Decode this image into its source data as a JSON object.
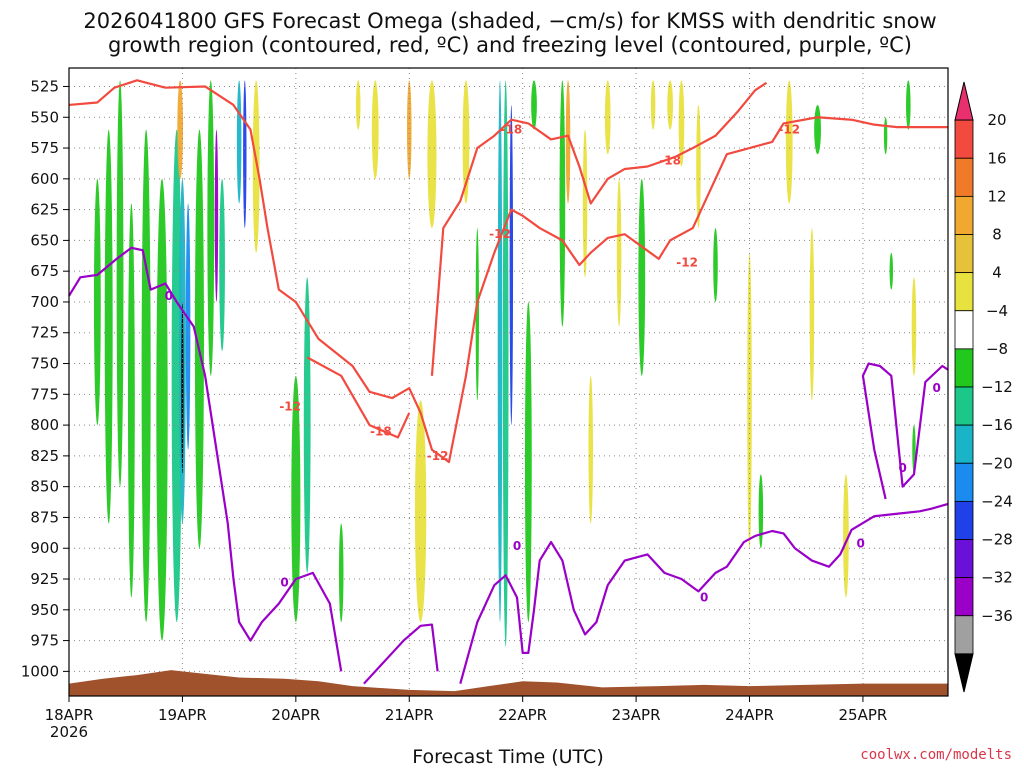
{
  "chart_data": {
    "type": "heatmap",
    "title_line1": "2026041800 GFS Forecast Omega (shaded, −cm/s) for KMSS with dendritic snow",
    "title_line2": "growth region (contoured, red, ºC) and freezing level (contoured, purple, ºC)",
    "xlabel": "Forecast Time (UTC)",
    "ylabel": "",
    "credit": "coolwx.com/modelts",
    "x_ticks": [
      "18APR",
      "19APR",
      "20APR",
      "21APR",
      "22APR",
      "23APR",
      "24APR",
      "25APR"
    ],
    "x_first_sub": "2026",
    "xlim_days": [
      0,
      7.75
    ],
    "y_ticks": [
      525,
      550,
      575,
      600,
      625,
      650,
      675,
      700,
      725,
      750,
      775,
      800,
      825,
      850,
      875,
      900,
      925,
      950,
      975,
      1000
    ],
    "ylim": [
      1020,
      510
    ],
    "colorbar": {
      "labels": [
        "20",
        "16",
        "12",
        "8",
        "4",
        "−4",
        "−8",
        "−12",
        "−16",
        "−20",
        "−24",
        "−28",
        "−32",
        "−36"
      ],
      "colors": [
        "#e8306e",
        "#f24a3f",
        "#f07a28",
        "#f0a830",
        "#e6c23a",
        "#e8e23f",
        "#ffffff",
        "#22c81e",
        "#1bc88a",
        "#1ab4c8",
        "#1a8cf0",
        "#2040e8",
        "#6a10d8",
        "#9a00c8",
        "#a0a0a0",
        "#000000"
      ]
    },
    "omega_blobs": [
      {
        "t": 0.25,
        "p0": 600,
        "p1": 800,
        "w": 0.06,
        "c": "#22c81e"
      },
      {
        "t": 0.35,
        "p0": 560,
        "p1": 880,
        "w": 0.07,
        "c": "#22c81e"
      },
      {
        "t": 0.45,
        "p0": 520,
        "p1": 850,
        "w": 0.06,
        "c": "#22c81e"
      },
      {
        "t": 0.55,
        "p0": 620,
        "p1": 940,
        "w": 0.06,
        "c": "#22c81e"
      },
      {
        "t": 0.68,
        "p0": 560,
        "p1": 960,
        "w": 0.08,
        "c": "#22c81e"
      },
      {
        "t": 0.82,
        "p0": 600,
        "p1": 975,
        "w": 0.1,
        "c": "#22c81e"
      },
      {
        "t": 0.95,
        "p0": 560,
        "p1": 960,
        "w": 0.09,
        "c": "#1bc88a"
      },
      {
        "t": 1.0,
        "p0": 600,
        "p1": 880,
        "w": 0.06,
        "c": "#1ab4c8"
      },
      {
        "t": 1.05,
        "p0": 620,
        "p1": 820,
        "w": 0.04,
        "c": "#1a8cf0"
      },
      {
        "t": 1.0,
        "p0": 700,
        "p1": 840,
        "w": 0.02,
        "c": "#000000"
      },
      {
        "t": 0.98,
        "p0": 520,
        "p1": 600,
        "w": 0.05,
        "c": "#f0a830"
      },
      {
        "t": 1.15,
        "p0": 560,
        "p1": 900,
        "w": 0.08,
        "c": "#22c81e"
      },
      {
        "t": 1.25,
        "p0": 520,
        "p1": 760,
        "w": 0.06,
        "c": "#22c81e"
      },
      {
        "t": 1.3,
        "p0": 560,
        "p1": 700,
        "w": 0.03,
        "c": "#9a00c8"
      },
      {
        "t": 1.35,
        "p0": 600,
        "p1": 740,
        "w": 0.05,
        "c": "#1bc88a"
      },
      {
        "t": 1.5,
        "p0": 520,
        "p1": 620,
        "w": 0.04,
        "c": "#1ab4c8"
      },
      {
        "t": 1.55,
        "p0": 520,
        "p1": 640,
        "w": 0.03,
        "c": "#2040e8"
      },
      {
        "t": 1.65,
        "p0": 520,
        "p1": 660,
        "w": 0.06,
        "c": "#e8e23f"
      },
      {
        "t": 2.0,
        "p0": 760,
        "p1": 960,
        "w": 0.08,
        "c": "#22c81e"
      },
      {
        "t": 2.1,
        "p0": 680,
        "p1": 920,
        "w": 0.06,
        "c": "#1bc88a"
      },
      {
        "t": 2.4,
        "p0": 880,
        "p1": 960,
        "w": 0.04,
        "c": "#22c81e"
      },
      {
        "t": 2.55,
        "p0": 520,
        "p1": 560,
        "w": 0.04,
        "c": "#e8e23f"
      },
      {
        "t": 2.7,
        "p0": 520,
        "p1": 600,
        "w": 0.06,
        "c": "#e8e23f"
      },
      {
        "t": 3.1,
        "p0": 780,
        "p1": 960,
        "w": 0.1,
        "c": "#e8e23f"
      },
      {
        "t": 3.0,
        "p0": 520,
        "p1": 600,
        "w": 0.04,
        "c": "#f0a830"
      },
      {
        "t": 3.2,
        "p0": 520,
        "p1": 640,
        "w": 0.08,
        "c": "#e8e23f"
      },
      {
        "t": 3.5,
        "p0": 520,
        "p1": 620,
        "w": 0.06,
        "c": "#e8e23f"
      },
      {
        "t": 3.6,
        "p0": 640,
        "p1": 780,
        "w": 0.03,
        "c": "#22c81e"
      },
      {
        "t": 3.8,
        "p0": 520,
        "p1": 960,
        "w": 0.04,
        "c": "#1ab4c8"
      },
      {
        "t": 3.85,
        "p0": 520,
        "p1": 980,
        "w": 0.05,
        "c": "#1bc88a"
      },
      {
        "t": 3.9,
        "p0": 540,
        "p1": 800,
        "w": 0.03,
        "c": "#2040e8"
      },
      {
        "t": 4.05,
        "p0": 700,
        "p1": 960,
        "w": 0.06,
        "c": "#22c81e"
      },
      {
        "t": 4.1,
        "p0": 520,
        "p1": 560,
        "w": 0.05,
        "c": "#22c81e"
      },
      {
        "t": 4.35,
        "p0": 520,
        "p1": 720,
        "w": 0.05,
        "c": "#22c81e"
      },
      {
        "t": 4.4,
        "p0": 520,
        "p1": 620,
        "w": 0.04,
        "c": "#f0a830"
      },
      {
        "t": 4.55,
        "p0": 560,
        "p1": 680,
        "w": 0.04,
        "c": "#e8e23f"
      },
      {
        "t": 4.6,
        "p0": 760,
        "p1": 880,
        "w": 0.04,
        "c": "#e8e23f"
      },
      {
        "t": 4.75,
        "p0": 520,
        "p1": 580,
        "w": 0.05,
        "c": "#e8e23f"
      },
      {
        "t": 4.85,
        "p0": 600,
        "p1": 720,
        "w": 0.04,
        "c": "#e8e23f"
      },
      {
        "t": 5.05,
        "p0": 600,
        "p1": 760,
        "w": 0.06,
        "c": "#22c81e"
      },
      {
        "t": 5.15,
        "p0": 520,
        "p1": 560,
        "w": 0.04,
        "c": "#e8e23f"
      },
      {
        "t": 5.3,
        "p0": 520,
        "p1": 560,
        "w": 0.05,
        "c": "#e8e23f"
      },
      {
        "t": 5.4,
        "p0": 520,
        "p1": 590,
        "w": 0.05,
        "c": "#e8e23f"
      },
      {
        "t": 5.55,
        "p0": 540,
        "p1": 640,
        "w": 0.04,
        "c": "#e8e23f"
      },
      {
        "t": 5.7,
        "p0": 640,
        "p1": 700,
        "w": 0.04,
        "c": "#22c81e"
      },
      {
        "t": 6.0,
        "p0": 660,
        "p1": 900,
        "w": 0.04,
        "c": "#e8e23f"
      },
      {
        "t": 6.1,
        "p0": 840,
        "p1": 900,
        "w": 0.04,
        "c": "#22c81e"
      },
      {
        "t": 6.35,
        "p0": 520,
        "p1": 620,
        "w": 0.06,
        "c": "#e8e23f"
      },
      {
        "t": 6.6,
        "p0": 540,
        "p1": 580,
        "w": 0.06,
        "c": "#22c81e"
      },
      {
        "t": 6.55,
        "p0": 640,
        "p1": 780,
        "w": 0.04,
        "c": "#e8e23f"
      },
      {
        "t": 6.85,
        "p0": 840,
        "p1": 940,
        "w": 0.05,
        "c": "#e8e23f"
      },
      {
        "t": 7.2,
        "p0": 550,
        "p1": 580,
        "w": 0.03,
        "c": "#22c81e"
      },
      {
        "t": 7.25,
        "p0": 660,
        "p1": 690,
        "w": 0.03,
        "c": "#22c81e"
      },
      {
        "t": 7.4,
        "p0": 520,
        "p1": 560,
        "w": 0.04,
        "c": "#22c81e"
      },
      {
        "t": 7.45,
        "p0": 680,
        "p1": 760,
        "w": 0.04,
        "c": "#e8e23f"
      },
      {
        "t": 7.45,
        "p0": 800,
        "p1": 840,
        "w": 0.03,
        "c": "#22c81e"
      }
    ],
    "dgz_lines": [
      {
        "name": "-12",
        "points": [
          [
            0,
            540
          ],
          [
            0.25,
            538
          ],
          [
            0.4,
            526
          ],
          [
            0.6,
            520
          ],
          [
            0.85,
            526
          ],
          [
            1.2,
            525
          ],
          [
            1.45,
            540
          ],
          [
            1.6,
            560
          ],
          [
            1.68,
            600
          ],
          [
            1.75,
            640
          ],
          [
            1.85,
            690
          ],
          [
            2.0,
            700
          ],
          [
            2.2,
            730
          ],
          [
            2.5,
            752
          ],
          [
            2.65,
            773
          ],
          [
            2.85,
            778
          ],
          [
            3.0,
            770
          ],
          [
            3.1,
            790
          ],
          [
            3.2,
            820
          ],
          [
            3.35,
            830
          ],
          [
            3.5,
            760
          ],
          [
            3.6,
            700
          ],
          [
            3.75,
            660
          ],
          [
            3.9,
            625
          ],
          [
            4.0,
            630
          ],
          [
            4.15,
            640
          ],
          [
            4.35,
            650
          ],
          [
            4.5,
            670
          ],
          [
            4.6,
            660
          ],
          [
            4.75,
            648
          ],
          [
            4.9,
            645
          ],
          [
            5.05,
            655
          ],
          [
            5.2,
            665
          ],
          [
            5.3,
            650
          ],
          [
            5.5,
            640
          ],
          [
            5.8,
            580
          ],
          [
            6.0,
            575
          ],
          [
            6.2,
            570
          ],
          [
            6.3,
            555
          ],
          [
            6.6,
            550
          ],
          [
            6.9,
            552
          ],
          [
            7.1,
            556
          ],
          [
            7.3,
            558
          ],
          [
            7.75,
            558
          ]
        ],
        "labels": [
          {
            "t": 1.95,
            "p": 785,
            "text": "-12"
          },
          {
            "t": 3.25,
            "p": 825,
            "text": "-12"
          },
          {
            "t": 3.8,
            "p": 645,
            "text": "-12"
          },
          {
            "t": 5.45,
            "p": 668,
            "text": "-12"
          },
          {
            "t": 6.35,
            "p": 560,
            "text": "-12"
          }
        ]
      },
      {
        "name": "-18",
        "points": [
          [
            3.2,
            760
          ],
          [
            3.3,
            640
          ],
          [
            3.45,
            618
          ],
          [
            3.6,
            575
          ],
          [
            3.75,
            565
          ],
          [
            3.9,
            552
          ],
          [
            4.05,
            555
          ],
          [
            4.25,
            568
          ],
          [
            4.4,
            565
          ],
          [
            4.5,
            590
          ],
          [
            4.6,
            620
          ],
          [
            4.75,
            600
          ],
          [
            4.9,
            592
          ],
          [
            5.1,
            590
          ],
          [
            5.35,
            582
          ],
          [
            5.5,
            575
          ],
          [
            5.7,
            565
          ],
          [
            5.9,
            545
          ],
          [
            6.05,
            528
          ],
          [
            6.15,
            522
          ]
        ],
        "labels": [
          {
            "t": 3.9,
            "p": 560,
            "text": "-18"
          },
          {
            "t": 5.3,
            "p": 585,
            "text": "-18"
          },
          {
            "t": 2.75,
            "p": 805,
            "text": "-18"
          }
        ]
      },
      {
        "name": "-18-lower",
        "points": [
          [
            2.1,
            745
          ],
          [
            2.4,
            760
          ],
          [
            2.65,
            800
          ],
          [
            2.9,
            810
          ],
          [
            3.0,
            790
          ]
        ],
        "labels": []
      }
    ],
    "freezing_lines": [
      {
        "name": "0-left",
        "points": [
          [
            0,
            695
          ],
          [
            0.1,
            680
          ],
          [
            0.25,
            678
          ],
          [
            0.42,
            665
          ],
          [
            0.55,
            656
          ],
          [
            0.65,
            658
          ],
          [
            0.72,
            690
          ],
          [
            0.85,
            685
          ],
          [
            0.95,
            700
          ],
          [
            1.1,
            720
          ],
          [
            1.2,
            760
          ],
          [
            1.3,
            820
          ],
          [
            1.4,
            880
          ],
          [
            1.45,
            925
          ],
          [
            1.5,
            960
          ],
          [
            1.6,
            975
          ],
          [
            1.7,
            960
          ],
          [
            1.85,
            945
          ],
          [
            2.0,
            925
          ],
          [
            2.15,
            920
          ],
          [
            2.3,
            945
          ],
          [
            2.4,
            1000
          ]
        ],
        "labels": [
          {
            "t": 0.88,
            "p": 695,
            "text": "0"
          },
          {
            "t": 1.9,
            "p": 928,
            "text": "0"
          }
        ]
      },
      {
        "name": "0-mid",
        "points": [
          [
            2.6,
            1010
          ],
          [
            2.8,
            990
          ],
          [
            2.95,
            975
          ],
          [
            3.1,
            963
          ],
          [
            3.2,
            962
          ],
          [
            3.25,
            1000
          ]
        ],
        "labels": []
      },
      {
        "name": "0-right",
        "points": [
          [
            3.45,
            1010
          ],
          [
            3.6,
            960
          ],
          [
            3.75,
            930
          ],
          [
            3.85,
            922
          ],
          [
            3.95,
            940
          ],
          [
            4.0,
            985
          ],
          [
            4.05,
            985
          ],
          [
            4.1,
            950
          ],
          [
            4.15,
            910
          ],
          [
            4.25,
            895
          ],
          [
            4.35,
            910
          ],
          [
            4.45,
            950
          ],
          [
            4.55,
            970
          ],
          [
            4.65,
            960
          ],
          [
            4.75,
            930
          ],
          [
            4.9,
            910
          ],
          [
            5.1,
            905
          ],
          [
            5.25,
            920
          ],
          [
            5.4,
            925
          ],
          [
            5.55,
            935
          ],
          [
            5.7,
            920
          ],
          [
            5.8,
            915
          ],
          [
            5.95,
            895
          ],
          [
            6.05,
            890
          ],
          [
            6.2,
            886
          ],
          [
            6.3,
            888
          ],
          [
            6.4,
            900
          ],
          [
            6.55,
            910
          ],
          [
            6.7,
            915
          ],
          [
            6.8,
            905
          ],
          [
            6.9,
            885
          ],
          [
            7.1,
            874
          ],
          [
            7.3,
            872
          ],
          [
            7.5,
            870
          ],
          [
            7.6,
            868
          ],
          [
            7.75,
            864
          ]
        ],
        "labels": [
          {
            "t": 3.95,
            "p": 898,
            "text": "0"
          },
          {
            "t": 5.6,
            "p": 940,
            "text": "0"
          },
          {
            "t": 6.98,
            "p": 896,
            "text": "0"
          }
        ]
      },
      {
        "name": "0-loop",
        "points": [
          [
            7.2,
            860
          ],
          [
            7.1,
            820
          ],
          [
            7.0,
            760
          ],
          [
            7.05,
            750
          ],
          [
            7.15,
            752
          ],
          [
            7.25,
            760
          ],
          [
            7.35,
            850
          ],
          [
            7.45,
            840
          ],
          [
            7.55,
            765
          ],
          [
            7.7,
            752
          ],
          [
            7.75,
            755
          ]
        ],
        "labels": [
          {
            "t": 7.35,
            "p": 835,
            "text": "0"
          },
          {
            "t": 7.65,
            "p": 770,
            "text": "0"
          }
        ]
      }
    ],
    "terrain": [
      [
        0,
        1010
      ],
      [
        0.3,
        1006
      ],
      [
        0.6,
        1003
      ],
      [
        0.9,
        999
      ],
      [
        1.2,
        1002
      ],
      [
        1.5,
        1005
      ],
      [
        1.9,
        1006
      ],
      [
        2.2,
        1008
      ],
      [
        2.5,
        1012
      ],
      [
        3.0,
        1015
      ],
      [
        3.4,
        1016
      ],
      [
        3.7,
        1012
      ],
      [
        4.0,
        1008
      ],
      [
        4.3,
        1009
      ],
      [
        4.7,
        1013
      ],
      [
        5.2,
        1012
      ],
      [
        5.6,
        1011
      ],
      [
        6.0,
        1012
      ],
      [
        6.5,
        1011
      ],
      [
        7.0,
        1010
      ],
      [
        7.4,
        1010
      ],
      [
        7.75,
        1010
      ]
    ],
    "colors": {
      "dgz": "#f24a3f",
      "freezing": "#9a00c8",
      "terrain": "#a0522d",
      "grid": "#888888",
      "credit": "#d9364a"
    }
  }
}
